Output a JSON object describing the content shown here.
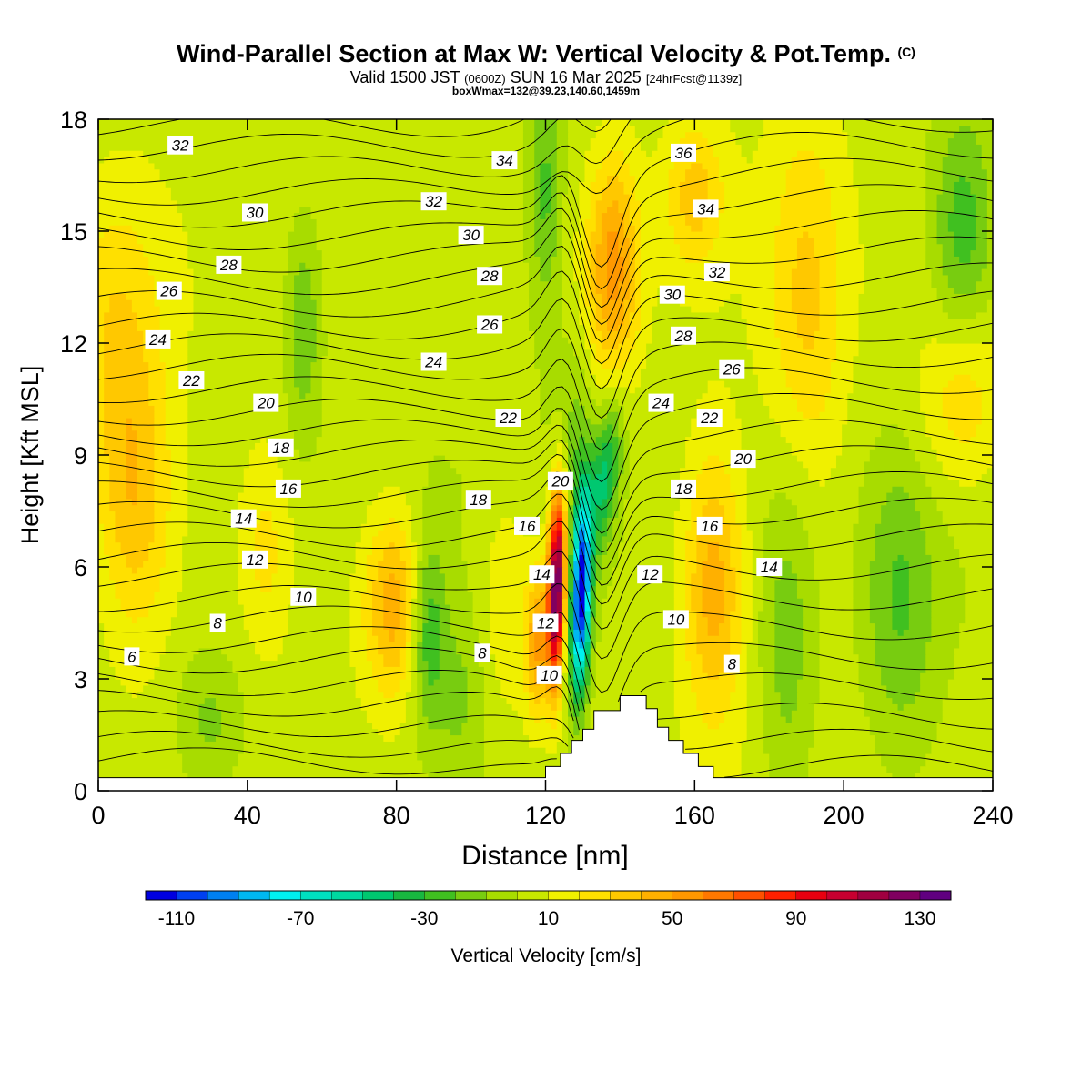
{
  "title": {
    "main": "Wind-Parallel Section at Max W: Vertical Velocity & Pot.Temp.",
    "copyright": "(C)",
    "valid_prefix": "Valid 1500 JST",
    "utc": "(0600Z)",
    "date": "SUN 16 Mar 2025",
    "forecast": "[24hrFcst@1139z]",
    "box": "boxWmax=132@39.23,140.60,1459m"
  },
  "chart_data": {
    "type": "heatmap",
    "xlabel": "Distance [nm]",
    "ylabel": "Height [Kft MSL]",
    "xlim": [
      0,
      240
    ],
    "ylim": [
      0,
      18
    ],
    "x_ticks": [
      0,
      40,
      80,
      120,
      160,
      200,
      240
    ],
    "y_ticks": [
      0,
      3,
      6,
      9,
      12,
      15,
      18
    ],
    "colorbar": {
      "label": "Vertical Velocity [cm/s]",
      "levels": [
        -120,
        -110,
        -100,
        -90,
        -80,
        -70,
        -60,
        -50,
        -40,
        -30,
        -20,
        -10,
        0,
        10,
        20,
        30,
        40,
        50,
        60,
        70,
        80,
        90,
        100,
        110,
        120,
        130,
        140
      ],
      "tick_labels": [
        "-110",
        "-70",
        "-30",
        "10",
        "50",
        "90",
        "130"
      ],
      "colors": [
        "#0000e0",
        "#0040f0",
        "#0080f0",
        "#00b8f0",
        "#00f0f0",
        "#00e0c0",
        "#00d8a0",
        "#00c870",
        "#18b840",
        "#40c020",
        "#78cc10",
        "#a8dc00",
        "#c8e800",
        "#f0f000",
        "#ffe000",
        "#ffc800",
        "#ffb000",
        "#ff9800",
        "#ff7800",
        "#ff5000",
        "#ff2000",
        "#e80010",
        "#c80030",
        "#a00040",
        "#800060",
        "#600080"
      ]
    },
    "terrain_profile": [
      {
        "x": 0,
        "z": 0.35
      },
      {
        "x": 120,
        "z": 0.35
      },
      {
        "x": 120,
        "z": 0.65
      },
      {
        "x": 124,
        "z": 0.65
      },
      {
        "x": 124,
        "z": 1.0
      },
      {
        "x": 127,
        "z": 1.0
      },
      {
        "x": 127,
        "z": 1.35
      },
      {
        "x": 130,
        "z": 1.35
      },
      {
        "x": 130,
        "z": 1.65
      },
      {
        "x": 133,
        "z": 1.65
      },
      {
        "x": 133,
        "z": 2.15
      },
      {
        "x": 140,
        "z": 2.15
      },
      {
        "x": 140,
        "z": 2.55
      },
      {
        "x": 147,
        "z": 2.55
      },
      {
        "x": 147,
        "z": 2.2
      },
      {
        "x": 150,
        "z": 2.2
      },
      {
        "x": 150,
        "z": 1.7
      },
      {
        "x": 153,
        "z": 1.7
      },
      {
        "x": 153,
        "z": 1.35
      },
      {
        "x": 157,
        "z": 1.35
      },
      {
        "x": 157,
        "z": 1.0
      },
      {
        "x": 161,
        "z": 1.0
      },
      {
        "x": 161,
        "z": 0.65
      },
      {
        "x": 165,
        "z": 0.65
      },
      {
        "x": 165,
        "z": 0.35
      },
      {
        "x": 240,
        "z": 0.35
      }
    ],
    "w_blobs": [
      {
        "x": 5,
        "z": 12,
        "sx": 12,
        "sz": 4,
        "w": 25
      },
      {
        "x": 10,
        "z": 7.5,
        "sx": 10,
        "sz": 3.5,
        "w": 30
      },
      {
        "x": 45,
        "z": 6.5,
        "sx": 7,
        "sz": 2.5,
        "w": 18
      },
      {
        "x": 80,
        "z": 5,
        "sx": 9,
        "sz": 2.5,
        "w": 45
      },
      {
        "x": 110,
        "z": 5,
        "sx": 8,
        "sz": 3,
        "w": 20
      },
      {
        "x": 138,
        "z": 14,
        "sx": 7,
        "sz": 3,
        "w": 50
      },
      {
        "x": 160,
        "z": 16,
        "sx": 8,
        "sz": 2,
        "w": 28
      },
      {
        "x": 165,
        "z": 5.5,
        "sx": 8,
        "sz": 3.5,
        "w": 40
      },
      {
        "x": 190,
        "z": 13,
        "sx": 10,
        "sz": 5,
        "w": 25
      },
      {
        "x": 232,
        "z": 10.5,
        "sx": 12,
        "sz": 2.5,
        "w": 25
      },
      {
        "x": 55,
        "z": 12.5,
        "sx": 5,
        "sz": 3,
        "w": -25
      },
      {
        "x": 88,
        "z": 4.5,
        "sx": 5,
        "sz": 2.5,
        "w": -40
      },
      {
        "x": 97,
        "z": 2.5,
        "sx": 8,
        "sz": 2.5,
        "w": -15
      },
      {
        "x": 30,
        "z": 1.8,
        "sx": 10,
        "sz": 2,
        "w": -20
      },
      {
        "x": 120,
        "z": 16,
        "sx": 4,
        "sz": 3,
        "w": -25
      },
      {
        "x": 185,
        "z": 4,
        "sx": 8,
        "sz": 5,
        "w": -22
      },
      {
        "x": 215,
        "z": 5,
        "sx": 10,
        "sz": 4,
        "w": -25
      },
      {
        "x": 232,
        "z": 15,
        "sx": 8,
        "sz": 3,
        "w": -30
      },
      {
        "x": 128,
        "z": 9.5,
        "sx": 5,
        "sz": 2.5,
        "w": -15
      }
    ],
    "w_extremes": [
      {
        "x": 123,
        "z": 5.5,
        "sx": 2.3,
        "sz": 2.6,
        "w": 135,
        "tilt": 0.2
      },
      {
        "x": 129.5,
        "z": 5.3,
        "sx": 2.6,
        "sz": 2.6,
        "w": -120,
        "tilt": 0.25
      },
      {
        "x": 136,
        "z": 8.5,
        "sx": 3.8,
        "sz": 2.0,
        "w": -45,
        "tilt": 1.0
      },
      {
        "x": 118,
        "z": 4.0,
        "sx": 3,
        "sz": 2.0,
        "w": 45,
        "tilt": 0.2
      }
    ],
    "theta_contours": {
      "levels": [
        4,
        5,
        6,
        7,
        8,
        9,
        10,
        11,
        12,
        13,
        14,
        15,
        16,
        17,
        18,
        19,
        20,
        21,
        22,
        23,
        24,
        25,
        26,
        27,
        28,
        29,
        30,
        31,
        32,
        33,
        34,
        35,
        36,
        37
      ],
      "base_height_left": [
        0.8,
        1.25,
        1.8,
        2.35,
        2.9,
        3.5,
        4.05,
        4.6,
        5.15,
        5.75,
        6.3,
        6.85,
        7.4,
        7.95,
        8.5,
        9.05,
        9.6,
        10.15,
        10.75,
        11.35,
        11.9,
        12.45,
        13.05,
        13.65,
        14.25,
        14.85,
        15.45,
        16.05,
        16.65,
        17.25,
        17.85,
        18.5,
        19.1,
        19.7
      ],
      "base_height_right": [
        -1.2,
        -0.6,
        0.0,
        0.6,
        1.3,
        2.0,
        2.8,
        3.6,
        4.4,
        5.2,
        6.0,
        6.8,
        7.5,
        8.2,
        8.9,
        9.6,
        10.3,
        11.0,
        11.7,
        12.4,
        13.1,
        13.8,
        14.5,
        15.2,
        15.9,
        16.6,
        17.3,
        18.0,
        18.7,
        19.4,
        20.1,
        20.8,
        21.5,
        22.2
      ]
    },
    "contour_labels": [
      {
        "text": "32",
        "x": 22,
        "z": 17.3
      },
      {
        "text": "30",
        "x": 42,
        "z": 15.5
      },
      {
        "text": "28",
        "x": 35,
        "z": 14.1
      },
      {
        "text": "26",
        "x": 19,
        "z": 13.4
      },
      {
        "text": "24",
        "x": 16,
        "z": 12.1
      },
      {
        "text": "22",
        "x": 25,
        "z": 11.0
      },
      {
        "text": "20",
        "x": 45,
        "z": 10.4
      },
      {
        "text": "18",
        "x": 49,
        "z": 9.2
      },
      {
        "text": "16",
        "x": 51,
        "z": 8.1
      },
      {
        "text": "14",
        "x": 39,
        "z": 7.3
      },
      {
        "text": "12",
        "x": 42,
        "z": 6.2
      },
      {
        "text": "10",
        "x": 55,
        "z": 5.2
      },
      {
        "text": "8",
        "x": 32,
        "z": 4.5
      },
      {
        "text": "6",
        "x": 9,
        "z": 3.6
      },
      {
        "text": "34",
        "x": 109,
        "z": 16.9
      },
      {
        "text": "32",
        "x": 90,
        "z": 15.8
      },
      {
        "text": "30",
        "x": 100,
        "z": 14.9
      },
      {
        "text": "28",
        "x": 105,
        "z": 13.8
      },
      {
        "text": "26",
        "x": 105,
        "z": 12.5
      },
      {
        "text": "24",
        "x": 90,
        "z": 11.5
      },
      {
        "text": "22",
        "x": 110,
        "z": 10.0
      },
      {
        "text": "20",
        "x": 124,
        "z": 8.3
      },
      {
        "text": "18",
        "x": 102,
        "z": 7.8
      },
      {
        "text": "16",
        "x": 115,
        "z": 7.1
      },
      {
        "text": "14",
        "x": 119,
        "z": 5.8
      },
      {
        "text": "12",
        "x": 120,
        "z": 4.5
      },
      {
        "text": "10",
        "x": 121,
        "z": 3.1
      },
      {
        "text": "8",
        "x": 103,
        "z": 3.7
      },
      {
        "text": "36",
        "x": 157,
        "z": 17.1
      },
      {
        "text": "34",
        "x": 163,
        "z": 15.6
      },
      {
        "text": "32",
        "x": 166,
        "z": 13.9
      },
      {
        "text": "30",
        "x": 154,
        "z": 13.3
      },
      {
        "text": "28",
        "x": 157,
        "z": 12.2
      },
      {
        "text": "26",
        "x": 170,
        "z": 11.3
      },
      {
        "text": "24",
        "x": 151,
        "z": 10.4
      },
      {
        "text": "22",
        "x": 164,
        "z": 10.0
      },
      {
        "text": "20",
        "x": 173,
        "z": 8.9
      },
      {
        "text": "18",
        "x": 157,
        "z": 8.1
      },
      {
        "text": "16",
        "x": 164,
        "z": 7.1
      },
      {
        "text": "14",
        "x": 180,
        "z": 6.0
      },
      {
        "text": "12",
        "x": 148,
        "z": 5.8
      },
      {
        "text": "10",
        "x": 155,
        "z": 4.6
      },
      {
        "text": "8",
        "x": 170,
        "z": 3.4
      }
    ]
  }
}
